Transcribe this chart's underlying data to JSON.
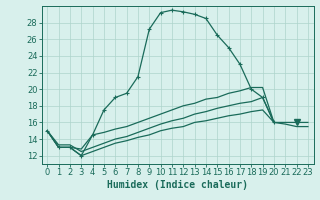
{
  "xlabel": "Humidex (Indice chaleur)",
  "background_color": "#d8f0ec",
  "grid_color": "#aed4cc",
  "line_color": "#1a6b5a",
  "xlim": [
    -0.5,
    23.5
  ],
  "ylim": [
    11.0,
    30.0
  ],
  "yticks": [
    12,
    14,
    16,
    18,
    20,
    22,
    24,
    26,
    28
  ],
  "xticks": [
    0,
    1,
    2,
    3,
    4,
    5,
    6,
    7,
    8,
    9,
    10,
    11,
    12,
    13,
    14,
    15,
    16,
    17,
    18,
    19,
    20,
    21,
    22,
    23
  ],
  "series1_x": [
    0,
    1,
    2,
    3,
    4,
    5,
    6,
    7,
    8,
    9,
    10,
    11,
    12,
    13,
    14,
    15,
    16,
    17,
    18,
    19,
    20
  ],
  "series1_y": [
    15.0,
    13.0,
    13.0,
    12.0,
    14.5,
    17.5,
    19.0,
    19.5,
    21.5,
    27.2,
    29.2,
    29.5,
    29.3,
    29.0,
    28.5,
    26.5,
    25.0,
    23.0,
    20.0,
    19.0,
    16.0
  ],
  "series2_x": [
    0,
    1,
    2,
    3,
    4,
    5,
    6,
    7,
    8,
    9,
    10,
    11,
    12,
    13,
    14,
    15,
    16,
    17,
    18,
    19,
    20
  ],
  "series2_y": [
    15.0,
    13.0,
    13.0,
    12.8,
    14.5,
    14.8,
    15.2,
    15.5,
    16.0,
    16.5,
    17.0,
    17.5,
    18.0,
    18.3,
    18.8,
    19.0,
    19.5,
    19.8,
    20.2,
    20.2,
    16.0
  ],
  "series3_x": [
    0,
    1,
    2,
    3,
    4,
    5,
    6,
    7,
    8,
    9,
    10,
    11,
    12,
    13,
    14,
    15,
    16,
    17,
    18,
    19,
    20,
    21,
    22,
    23
  ],
  "series3_y": [
    15.0,
    13.3,
    13.3,
    12.5,
    13.0,
    13.5,
    14.0,
    14.3,
    14.8,
    15.3,
    15.8,
    16.2,
    16.5,
    17.0,
    17.3,
    17.7,
    18.0,
    18.3,
    18.5,
    19.0,
    16.0,
    16.0,
    16.0,
    16.0
  ],
  "series4_x": [
    0,
    1,
    2,
    3,
    4,
    5,
    6,
    7,
    8,
    9,
    10,
    11,
    12,
    13,
    14,
    15,
    16,
    17,
    18,
    19,
    20,
    21,
    22,
    23
  ],
  "series4_y": [
    15.0,
    13.0,
    13.0,
    12.0,
    12.5,
    13.0,
    13.5,
    13.8,
    14.2,
    14.5,
    15.0,
    15.3,
    15.5,
    16.0,
    16.2,
    16.5,
    16.8,
    17.0,
    17.3,
    17.5,
    16.0,
    15.8,
    15.5,
    15.5
  ],
  "font_size_label": 7,
  "font_size_tick": 6
}
